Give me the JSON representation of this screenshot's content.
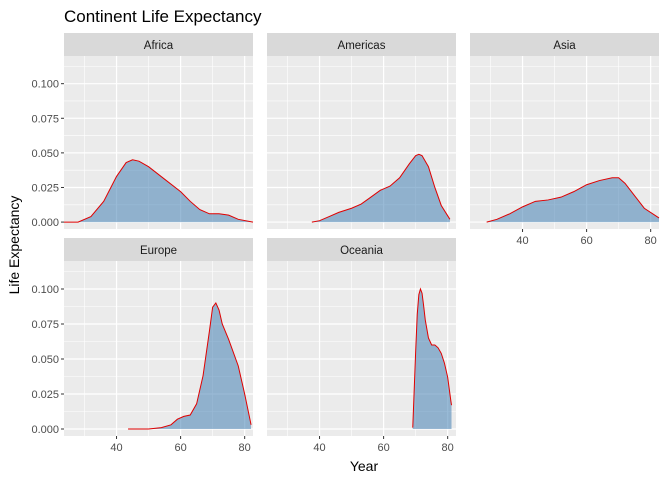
{
  "chart_data": {
    "type": "area",
    "title": "Continent Life Expectancy",
    "xlabel": "Year",
    "ylabel": "Life Expectancy",
    "xlim": [
      23.6,
      82.6
    ],
    "ylim": [
      -0.005,
      0.12
    ],
    "x_ticks": [
      40,
      60,
      80
    ],
    "y_ticks": [
      "0.000",
      "0.025",
      "0.050",
      "0.075",
      "0.100"
    ],
    "y_tick_values": [
      0,
      0.025,
      0.05,
      0.075,
      0.1
    ],
    "facet_layout": {
      "columns": 3,
      "rows": 2
    },
    "grid": true,
    "fill_color": "#4682b4",
    "fill_opacity": 0.55,
    "line_color": "#e00000",
    "panel_background": "#ebebeb",
    "strip_background": "#d9d9d9",
    "panels": [
      {
        "name": "Africa",
        "x": [
          23.6,
          28,
          32,
          36,
          40,
          43,
          45,
          47,
          50,
          55,
          60,
          63,
          66,
          69,
          72,
          75,
          78,
          82.6
        ],
        "values": [
          0.0,
          0.0,
          0.004,
          0.015,
          0.033,
          0.043,
          0.045,
          0.044,
          0.04,
          0.031,
          0.022,
          0.015,
          0.009,
          0.006,
          0.006,
          0.005,
          0.002,
          0.0
        ]
      },
      {
        "name": "Americas",
        "x": [
          37.6,
          40,
          43,
          46,
          50,
          53,
          56,
          59,
          62,
          65,
          68,
          70,
          71,
          72,
          74,
          76,
          78,
          80.7
        ],
        "values": [
          0.0,
          0.001,
          0.004,
          0.007,
          0.01,
          0.013,
          0.018,
          0.023,
          0.026,
          0.032,
          0.042,
          0.048,
          0.049,
          0.048,
          0.04,
          0.025,
          0.012,
          0.002
        ]
      },
      {
        "name": "Asia",
        "x": [
          28.8,
          32,
          36,
          40,
          44,
          48,
          52,
          56,
          60,
          64,
          68,
          70,
          72,
          75,
          78,
          82.6
        ],
        "values": [
          0.0,
          0.002,
          0.006,
          0.011,
          0.015,
          0.016,
          0.018,
          0.022,
          0.027,
          0.03,
          0.032,
          0.032,
          0.028,
          0.019,
          0.01,
          0.003
        ]
      },
      {
        "name": "Europe",
        "x": [
          43.6,
          50,
          54,
          57,
          59,
          61,
          63,
          65,
          67,
          69,
          70,
          71,
          72,
          73,
          75,
          78,
          80,
          82
        ],
        "values": [
          0.0,
          0.0,
          0.001,
          0.003,
          0.007,
          0.009,
          0.01,
          0.018,
          0.038,
          0.07,
          0.087,
          0.09,
          0.085,
          0.075,
          0.064,
          0.045,
          0.025,
          0.003
        ]
      },
      {
        "name": "Oceania",
        "x": [
          69.1,
          69.5,
          70,
          70.5,
          71,
          71.5,
          72,
          72.5,
          73,
          74,
          75,
          76,
          77,
          78,
          79,
          80,
          81,
          81.2
        ],
        "values": [
          0.001,
          0.025,
          0.055,
          0.082,
          0.096,
          0.1,
          0.097,
          0.088,
          0.078,
          0.065,
          0.06,
          0.06,
          0.058,
          0.054,
          0.047,
          0.037,
          0.02,
          0.017
        ]
      }
    ]
  }
}
